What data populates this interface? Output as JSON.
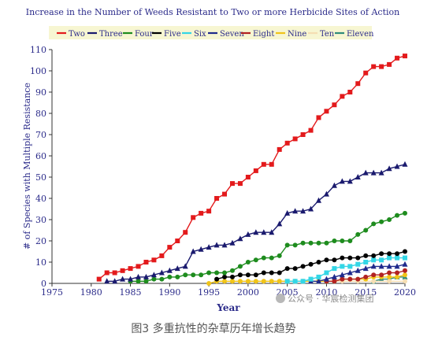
{
  "chart_data": {
    "type": "line",
    "title": "Increase in the Number of Weeds Resistant to Two or more Herbicide Sites of Action",
    "xlabel": "Year",
    "ylabel": "# of Species with Multiple Resistance",
    "xlim": [
      1975,
      2020
    ],
    "ylim": [
      0,
      110
    ],
    "xticks": [
      1975,
      1980,
      1985,
      1990,
      1995,
      2000,
      2005,
      2010,
      2015,
      2020
    ],
    "yticks": [
      0,
      10,
      20,
      30,
      40,
      50,
      60,
      70,
      80,
      90,
      100,
      110
    ],
    "legend_position": "top",
    "grid": false,
    "series": [
      {
        "name": "Two",
        "color": "#e31a1c",
        "marker": "square",
        "x": [
          1981,
          1982,
          1983,
          1984,
          1985,
          1986,
          1987,
          1988,
          1989,
          1990,
          1991,
          1992,
          1993,
          1994,
          1995,
          1996,
          1997,
          1998,
          1999,
          2000,
          2001,
          2002,
          2003,
          2004,
          2005,
          2006,
          2007,
          2008,
          2009,
          2010,
          2011,
          2012,
          2013,
          2014,
          2015,
          2016,
          2017,
          2018,
          2019,
          2020
        ],
        "y": [
          2,
          5,
          5,
          6,
          7,
          8,
          10,
          11,
          13,
          17,
          20,
          24,
          31,
          33,
          34,
          40,
          42,
          47,
          47,
          50,
          53,
          56,
          56,
          63,
          66,
          68,
          70,
          72,
          78,
          81,
          84,
          88,
          90,
          94,
          99,
          102,
          102,
          103,
          106,
          107
        ]
      },
      {
        "name": "Three",
        "color": "#1a1a6e",
        "marker": "triangle",
        "x": [
          1982,
          1983,
          1984,
          1985,
          1986,
          1987,
          1988,
          1989,
          1990,
          1991,
          1992,
          1993,
          1994,
          1995,
          1996,
          1997,
          1998,
          1999,
          2000,
          2001,
          2002,
          2003,
          2004,
          2005,
          2006,
          2007,
          2008,
          2009,
          2010,
          2011,
          2012,
          2013,
          2014,
          2015,
          2016,
          2017,
          2018,
          2019,
          2020
        ],
        "y": [
          1,
          1,
          2,
          2,
          3,
          3,
          4,
          5,
          6,
          7,
          8,
          15,
          16,
          17,
          18,
          18,
          19,
          21,
          23,
          24,
          24,
          24,
          28,
          33,
          34,
          34,
          35,
          39,
          42,
          46,
          48,
          48,
          50,
          52,
          52,
          52,
          54,
          55,
          56
        ]
      },
      {
        "name": "Four",
        "color": "#1e8c1e",
        "marker": "circle",
        "x": [
          1985,
          1986,
          1987,
          1988,
          1989,
          1990,
          1991,
          1992,
          1993,
          1994,
          1995,
          1996,
          1997,
          1998,
          1999,
          2000,
          2001,
          2002,
          2003,
          2004,
          2005,
          2006,
          2007,
          2008,
          2009,
          2010,
          2011,
          2012,
          2013,
          2014,
          2015,
          2016,
          2017,
          2018,
          2019,
          2020
        ],
        "y": [
          1,
          1,
          1,
          2,
          2,
          3,
          3,
          4,
          4,
          4,
          5,
          5,
          5,
          6,
          8,
          10,
          11,
          12,
          12,
          13,
          18,
          18,
          19,
          19,
          19,
          19,
          20,
          20,
          20,
          23,
          25,
          28,
          29,
          30,
          32,
          33
        ]
      },
      {
        "name": "Five",
        "color": "#000000",
        "marker": "circle",
        "x": [
          1996,
          1997,
          1998,
          1999,
          2000,
          2001,
          2002,
          2003,
          2004,
          2005,
          2006,
          2007,
          2008,
          2009,
          2010,
          2011,
          2012,
          2013,
          2014,
          2015,
          2016,
          2017,
          2018,
          2019,
          2020
        ],
        "y": [
          2,
          3,
          3,
          4,
          4,
          4,
          5,
          5,
          5,
          7,
          7,
          8,
          9,
          10,
          11,
          11,
          12,
          12,
          12,
          13,
          13,
          14,
          14,
          14,
          15
        ]
      },
      {
        "name": "Six",
        "color": "#33d6e6",
        "marker": "square",
        "x": [
          2005,
          2006,
          2007,
          2008,
          2009,
          2010,
          2011,
          2012,
          2013,
          2014,
          2015,
          2016,
          2017,
          2018,
          2019,
          2020
        ],
        "y": [
          1,
          1,
          1,
          2,
          3,
          5,
          7,
          8,
          8,
          9,
          10,
          11,
          11,
          12,
          12,
          12
        ]
      },
      {
        "name": "Seven",
        "color": "#1f2a8c",
        "marker": "triangle",
        "x": [
          2008,
          2009,
          2010,
          2011,
          2012,
          2013,
          2014,
          2015,
          2016,
          2017,
          2018,
          2019,
          2020
        ],
        "y": [
          1,
          1,
          2,
          3,
          4,
          5,
          6,
          7,
          8,
          8,
          8,
          8,
          9
        ]
      },
      {
        "name": "Eight",
        "color": "#b22222",
        "marker": "circle",
        "x": [
          2010,
          2011,
          2012,
          2013,
          2014,
          2015,
          2016,
          2017,
          2018,
          2019,
          2020
        ],
        "y": [
          1,
          1,
          2,
          2,
          2,
          3,
          4,
          4,
          5,
          5,
          6
        ]
      },
      {
        "name": "Nine",
        "color": "#f0c419",
        "marker": "circle",
        "x": [
          1995,
          1996,
          1997,
          1998,
          1999,
          2000,
          2001,
          2002,
          2003,
          2004,
          2005,
          2006,
          2007,
          2008,
          2009,
          2010,
          2011,
          2012,
          2013,
          2014,
          2015,
          2016,
          2017,
          2018,
          2019,
          2020
        ],
        "y": [
          0,
          1,
          1,
          1,
          1,
          1,
          1,
          1,
          1,
          1,
          1,
          1,
          1,
          1,
          1,
          1,
          1,
          2,
          2,
          2,
          2,
          3,
          3,
          3,
          3,
          4
        ]
      },
      {
        "name": "Ten",
        "color": "#f5deb3",
        "marker": "circle",
        "x": [
          2000,
          2002,
          2004,
          2006,
          2008,
          2010,
          2012,
          2014,
          2016,
          2018,
          2020
        ],
        "y": [
          1,
          1,
          1,
          1,
          1,
          1,
          1,
          1,
          1,
          1,
          1
        ]
      },
      {
        "name": "Eleven",
        "color": "#2e8b7a",
        "marker": "triangle",
        "x": [
          2016,
          2017,
          2018,
          2019,
          2020
        ],
        "y": [
          1,
          2,
          2,
          3,
          3
        ]
      }
    ]
  },
  "caption": "图3 多重抗性的杂草历年增长趋势",
  "watermark": "公众号 · 华宸检测集团"
}
